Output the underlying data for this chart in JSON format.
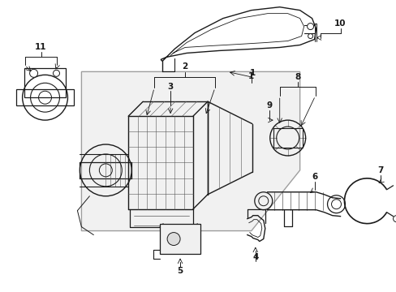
{
  "background_color": "#ffffff",
  "gray_bg": "#dcdcdc",
  "line_color": "#1a1a1a",
  "label_fontsize": 7.5,
  "fig_w": 4.89,
  "fig_h": 3.6,
  "dpi": 100
}
